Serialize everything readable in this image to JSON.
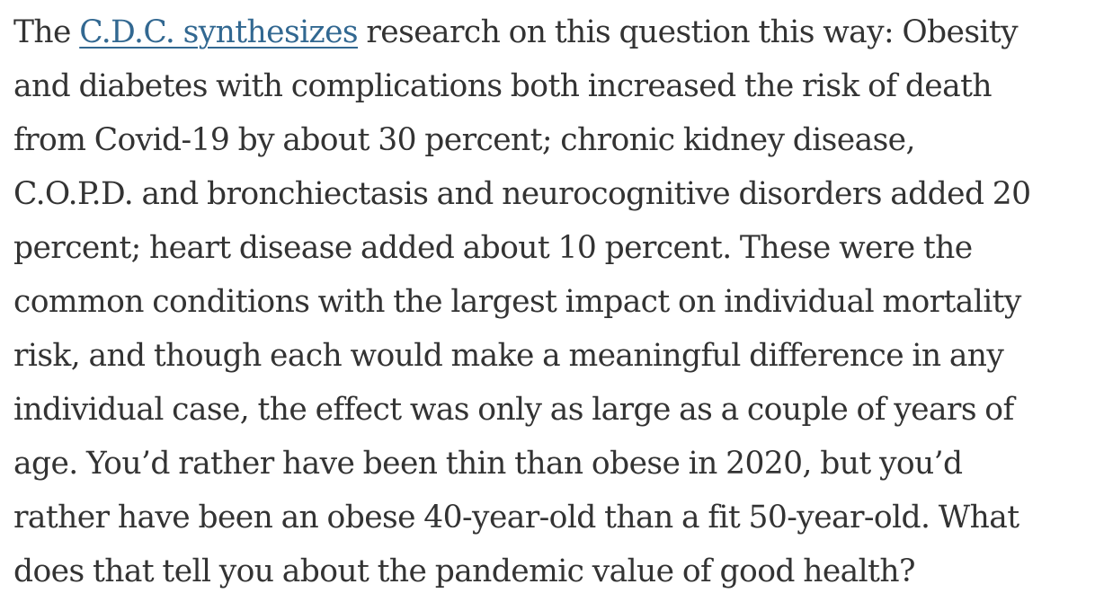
{
  "article": {
    "lines": [
      {
        "before": "The ",
        "link": "C.D.C. synthesizes",
        "after": " research on this question this way: Obesity"
      },
      {
        "text": "and diabetes with complications both increased the risk of death"
      },
      {
        "text": "from Covid-19 by about 30 percent; chronic kidney disease,"
      },
      {
        "text": "C.O.P.D. and bronchiectasis and neurocognitive disorders added 20"
      },
      {
        "text": "percent; heart disease added about 10 percent. These were the"
      },
      {
        "text": "common conditions with the largest impact on individual mortality"
      },
      {
        "text": "risk, and though each would make a meaningful difference in any"
      },
      {
        "text": "individual case, the effect was only as large as a couple of years of"
      },
      {
        "text": "age. You’d rather have been thin than obese in 2020, but you’d"
      },
      {
        "text": "rather have been an obese 40-year-old than a fit 50-year-old. What"
      },
      {
        "text": "does that tell you about the pandemic value of good health?"
      }
    ]
  },
  "colors": {
    "text": "#333333",
    "link": "#326891",
    "background": "#ffffff"
  }
}
